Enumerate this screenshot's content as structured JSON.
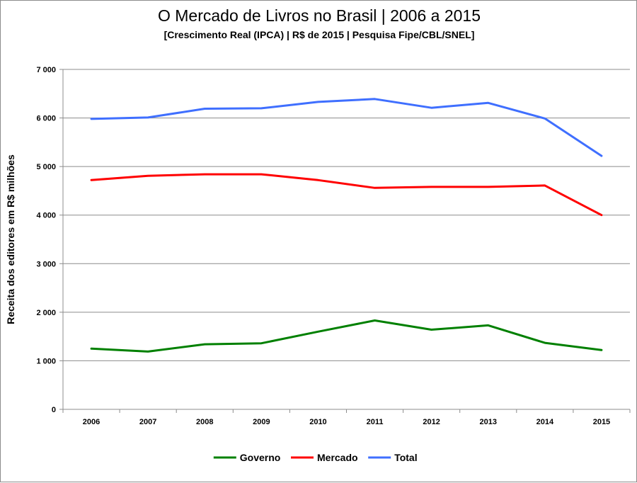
{
  "chart_data": {
    "type": "line",
    "title": "O Mercado de Livros no Brasil | 2006 a 2015",
    "subtitle": "[Crescimento Real (IPCA) | R$ de 2015 | Pesquisa Fipe/CBL/SNEL]",
    "xlabel": "",
    "ylabel": "Receita dos editores em R$ milhões",
    "x": [
      "2006",
      "2007",
      "2008",
      "2009",
      "2010",
      "2011",
      "2012",
      "2013",
      "2014",
      "2015"
    ],
    "ylim": [
      0,
      7000
    ],
    "yticks": [
      0,
      1000,
      2000,
      3000,
      4000,
      5000,
      6000,
      7000
    ],
    "ytick_labels": [
      "0",
      "1 000",
      "2 000",
      "3 000",
      "4 000",
      "5 000",
      "6 000",
      "7 000"
    ],
    "grid": "horizontal",
    "legend_position": "bottom",
    "series": [
      {
        "name": "Governo",
        "color": "#008000",
        "values": [
          1250,
          1190,
          1340,
          1360,
          1600,
          1830,
          1640,
          1730,
          1370,
          1220
        ]
      },
      {
        "name": "Mercado",
        "color": "#ff0000",
        "values": [
          4720,
          4810,
          4840,
          4840,
          4720,
          4560,
          4580,
          4580,
          4610,
          4000
        ]
      },
      {
        "name": "Total",
        "color": "#3f6fff",
        "values": [
          5980,
          6010,
          6190,
          6200,
          6330,
          6390,
          6210,
          6310,
          5990,
          5220
        ]
      }
    ]
  }
}
